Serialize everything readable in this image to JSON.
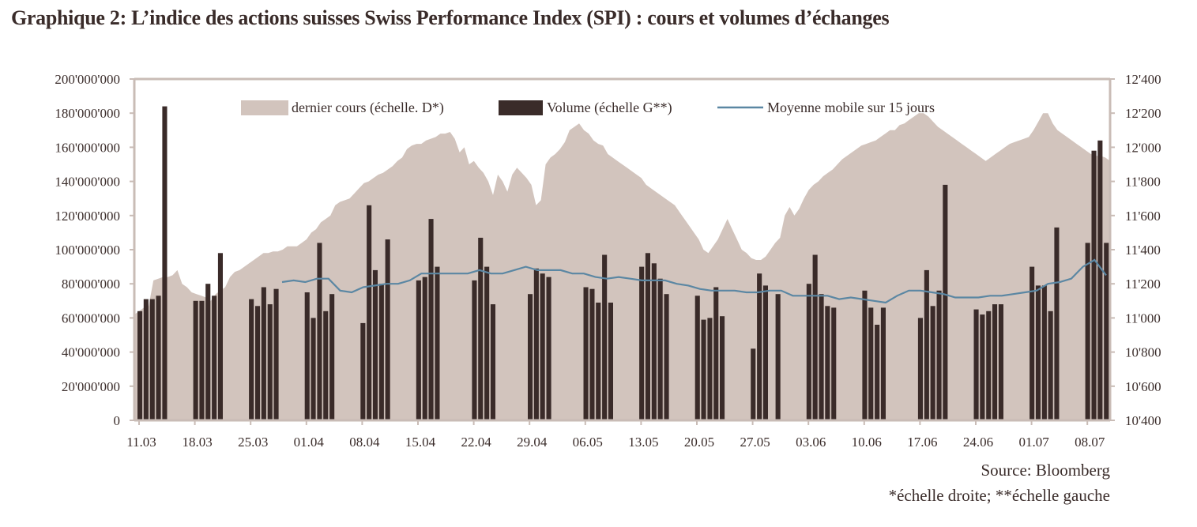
{
  "title": "Graphique 2:  L’indice des actions suisses Swiss Performance Index (SPI) : cours et volumes d’échanges",
  "source": "Source: Bloomberg",
  "note": "*échelle droite;  **échelle gauche",
  "colors": {
    "price_area": "#d2c4bd",
    "volume_bars": "#3a2b29",
    "moving_avg": "#5b87a3",
    "axis": "#c9bcb6"
  },
  "chart_data": {
    "type": "bar",
    "x_tick_labels": [
      "11.03",
      "18.03",
      "25.03",
      "01.04",
      "08.04",
      "15.04",
      "22.04",
      "29.04",
      "06.05",
      "13.05",
      "20.05",
      "27.05",
      "03.06",
      "10.06",
      "17.06",
      "24.06",
      "01.07",
      "08.07"
    ],
    "left_axis": {
      "label": "",
      "ylim": [
        0,
        200000000
      ],
      "tick_labels": [
        "0",
        "20'000'000",
        "40'000'000",
        "60'000'000",
        "80'000'000",
        "100'000'000",
        "120'000'000",
        "140'000'000",
        "160'000'000",
        "180'000'000",
        "200'000'000"
      ]
    },
    "right_axis": {
      "label": "",
      "ylim": [
        10400,
        12400
      ],
      "tick_labels": [
        "10'400",
        "10'600",
        "10'800",
        "11'000",
        "11'200",
        "11'400",
        "11'600",
        "11'800",
        "12'000",
        "12'200",
        "12'400"
      ]
    },
    "grid": false,
    "legend_position": "top-center",
    "series": [
      {
        "name": "dernier cours (échelle. D*)",
        "kind": "area",
        "axis": "right",
        "values": [
          11020,
          11040,
          11060,
          11070,
          11220,
          11230,
          11240,
          11240,
          11250,
          11280,
          11200,
          11180,
          11150,
          11140,
          11130,
          11120,
          11100,
          11140,
          11160,
          11180,
          11240,
          11270,
          11280,
          11300,
          11320,
          11340,
          11360,
          11380,
          11380,
          11390,
          11390,
          11400,
          11420,
          11420,
          11420,
          11440,
          11460,
          11500,
          11520,
          11560,
          11580,
          11600,
          11660,
          11680,
          11690,
          11700,
          11730,
          11760,
          11790,
          11800,
          11820,
          11840,
          11850,
          11870,
          11890,
          11920,
          11940,
          11990,
          12010,
          12020,
          12020,
          12040,
          12050,
          12060,
          12080,
          12080,
          12090,
          12050,
          11970,
          12000,
          11900,
          11920,
          11880,
          11850,
          11800,
          11720,
          11840,
          11800,
          11740,
          11840,
          11880,
          11850,
          11820,
          11780,
          11660,
          11690,
          11900,
          11940,
          11960,
          11990,
          12030,
          12100,
          12120,
          12140,
          12100,
          12080,
          12040,
          12020,
          12010,
          11960,
          11940,
          11920,
          11900,
          11880,
          11860,
          11840,
          11820,
          11780,
          11760,
          11740,
          11720,
          11700,
          11680,
          11660,
          11620,
          11580,
          11540,
          11500,
          11460,
          11400,
          11380,
          11420,
          11460,
          11520,
          11580,
          11520,
          11460,
          11400,
          11380,
          11350,
          11340,
          11340,
          11360,
          11400,
          11440,
          11470,
          11600,
          11650,
          11600,
          11640,
          11700,
          11750,
          11780,
          11800,
          11830,
          11850,
          11870,
          11900,
          11930,
          11950,
          11970,
          11990,
          12010,
          12020,
          12030,
          12040,
          12060,
          12080,
          12100,
          12100,
          12130,
          12140,
          12160,
          12180,
          12200,
          12200,
          12180,
          12150,
          12120,
          12100,
          12080,
          12060,
          12040,
          12020,
          12000,
          11980,
          11960,
          11940,
          11920,
          11940,
          11960,
          11980,
          12000,
          12020,
          12030,
          12040,
          12050,
          12060,
          12100,
          12150,
          12200,
          12200,
          12140,
          12100,
          12080,
          12060,
          12040,
          12020,
          12000,
          11980,
          11960,
          11950,
          11950,
          11940,
          11920
        ]
      },
      {
        "name": "Volume (échelle G**)",
        "kind": "bar",
        "axis": "left",
        "values": [
          64000000,
          71000000,
          71000000,
          73000000,
          184000000,
          null,
          null,
          null,
          null,
          70000000,
          70000000,
          80000000,
          73000000,
          98000000,
          null,
          null,
          null,
          null,
          71000000,
          67000000,
          78000000,
          68000000,
          77000000,
          null,
          null,
          null,
          null,
          75000000,
          60000000,
          104000000,
          64000000,
          74000000,
          null,
          null,
          null,
          null,
          57000000,
          126000000,
          88000000,
          80000000,
          106000000,
          null,
          null,
          null,
          null,
          82000000,
          84000000,
          118000000,
          90000000,
          null,
          null,
          null,
          null,
          null,
          82000000,
          107000000,
          90000000,
          68000000,
          null,
          null,
          null,
          null,
          null,
          74000000,
          89000000,
          86000000,
          84000000,
          null,
          null,
          null,
          null,
          null,
          78000000,
          77000000,
          69000000,
          97000000,
          69000000,
          null,
          null,
          null,
          null,
          90000000,
          98000000,
          92000000,
          83000000,
          74000000,
          null,
          null,
          null,
          null,
          73000000,
          59000000,
          60000000,
          78000000,
          61000000,
          null,
          null,
          null,
          null,
          42000000,
          86000000,
          79000000,
          null,
          74000000,
          null,
          null,
          null,
          null,
          80000000,
          97000000,
          74000000,
          67000000,
          66000000,
          null,
          null,
          null,
          null,
          76000000,
          66000000,
          56000000,
          66000000,
          null,
          null,
          null,
          null,
          null,
          60000000,
          88000000,
          67000000,
          76000000,
          138000000,
          null,
          null,
          null,
          null,
          65000000,
          62000000,
          64000000,
          68000000,
          68000000,
          null,
          null,
          null,
          null,
          90000000,
          79000000,
          79000000,
          64000000,
          113000000,
          null,
          null,
          null,
          null,
          104000000,
          158000000,
          164000000,
          104000000
        ]
      },
      {
        "name": "Moyenne mobile sur 15 jours",
        "kind": "line",
        "axis": "left",
        "values": [
          81000000,
          82000000,
          81000000,
          83000000,
          83000000,
          76000000,
          75000000,
          78000000,
          79000000,
          80000000,
          80000000,
          82000000,
          86000000,
          86000000,
          86000000,
          86000000,
          86000000,
          88000000,
          86000000,
          86000000,
          88000000,
          90000000,
          88000000,
          88000000,
          88000000,
          86000000,
          86000000,
          84000000,
          83000000,
          84000000,
          83000000,
          82000000,
          82000000,
          82000000,
          80000000,
          79000000,
          77000000,
          76000000,
          76000000,
          76000000,
          75000000,
          75000000,
          76000000,
          76000000,
          73000000,
          73000000,
          73000000,
          73000000,
          71000000,
          72000000,
          71000000,
          70000000,
          69000000,
          73000000,
          76000000,
          76000000,
          75000000,
          74000000,
          72000000,
          72000000,
          72000000,
          73000000,
          73000000,
          74000000,
          75000000,
          76000000,
          80000000,
          81000000,
          83000000,
          90000000,
          94000000,
          85000000
        ]
      }
    ]
  }
}
